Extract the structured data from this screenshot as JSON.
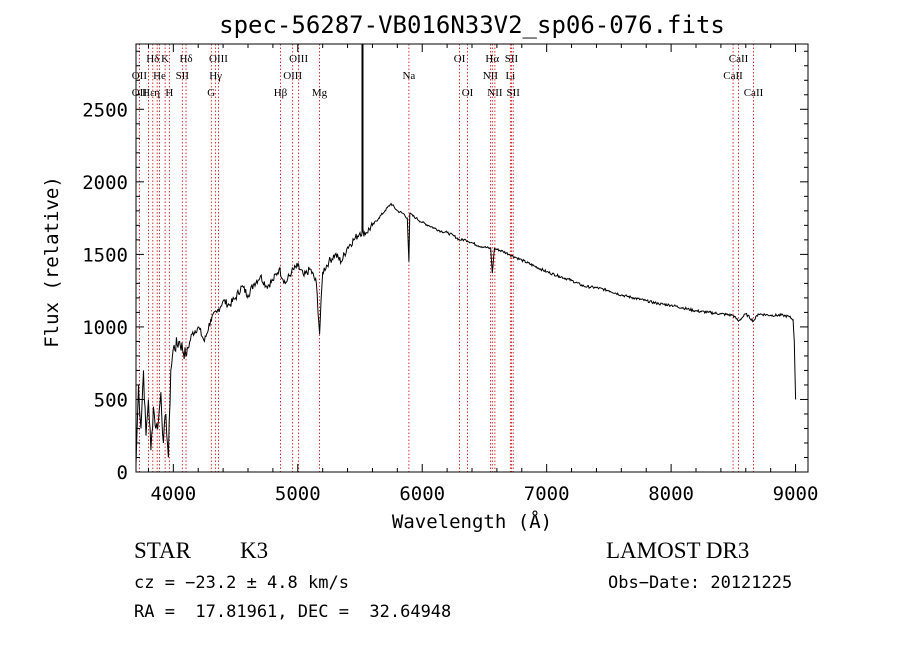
{
  "chart_data": {
    "type": "line",
    "title": "spec-56287-VB016N33V2_sp06-076.fits",
    "xlabel": "Wavelength (Å)",
    "ylabel": "Flux (relative)",
    "xlim": [
      3700,
      9100
    ],
    "ylim": [
      0,
      2950
    ],
    "xticks": [
      4000,
      5000,
      6000,
      7000,
      8000,
      9000
    ],
    "yticks": [
      0,
      500,
      1000,
      1500,
      2000,
      2500
    ],
    "marker_line_x": 5520,
    "series": [
      {
        "name": "spectrum",
        "x": [
          3700,
          3720,
          3740,
          3760,
          3780,
          3800,
          3820,
          3840,
          3860,
          3880,
          3900,
          3920,
          3940,
          3960,
          3980,
          4000,
          4050,
          4100,
          4150,
          4200,
          4250,
          4300,
          4350,
          4400,
          4450,
          4500,
          4550,
          4600,
          4650,
          4700,
          4750,
          4800,
          4850,
          4900,
          4950,
          5000,
          5050,
          5100,
          5150,
          5175,
          5200,
          5250,
          5300,
          5350,
          5400,
          5450,
          5500,
          5550,
          5600,
          5650,
          5700,
          5750,
          5800,
          5850,
          5880,
          5893,
          5900,
          5950,
          6000,
          6050,
          6100,
          6150,
          6200,
          6250,
          6300,
          6350,
          6400,
          6450,
          6500,
          6550,
          6563,
          6580,
          6650,
          6700,
          6750,
          6800,
          6900,
          7000,
          7100,
          7200,
          7300,
          7400,
          7500,
          7600,
          7700,
          7800,
          7900,
          8000,
          8100,
          8200,
          8300,
          8400,
          8498,
          8542,
          8600,
          8662,
          8700,
          8800,
          8900,
          8950,
          8980,
          8990,
          9000
        ],
        "values": [
          50,
          600,
          300,
          700,
          250,
          500,
          150,
          450,
          300,
          350,
          550,
          200,
          400,
          100,
          700,
          850,
          900,
          800,
          950,
          1000,
          900,
          1050,
          1100,
          1180,
          1150,
          1200,
          1280,
          1220,
          1300,
          1350,
          1280,
          1320,
          1400,
          1300,
          1380,
          1420,
          1350,
          1400,
          1300,
          950,
          1380,
          1450,
          1500,
          1450,
          1550,
          1600,
          1650,
          1650,
          1700,
          1750,
          1800,
          1850,
          1800,
          1780,
          1750,
          1450,
          1780,
          1750,
          1720,
          1700,
          1680,
          1660,
          1650,
          1630,
          1600,
          1600,
          1580,
          1560,
          1550,
          1540,
          1370,
          1540,
          1520,
          1500,
          1480,
          1460,
          1420,
          1380,
          1350,
          1320,
          1280,
          1270,
          1250,
          1220,
          1200,
          1180,
          1160,
          1150,
          1130,
          1110,
          1100,
          1090,
          1080,
          1040,
          1090,
          1040,
          1090,
          1080,
          1080,
          1070,
          1050,
          900,
          500
        ]
      }
    ],
    "line_annotations": [
      {
        "label": "Hδ",
        "x": 3835,
        "row": 1,
        "line_x": 3835
      },
      {
        "label": "K",
        "x": 3934,
        "row": 1,
        "line_x": 3934
      },
      {
        "label": "Hδ",
        "x": 4102,
        "row": 1,
        "line_x": 4102
      },
      {
        "label": "OIII",
        "x": 4363,
        "row": 1,
        "line_x": 4363
      },
      {
        "label": "OIII",
        "x": 5007,
        "row": 1,
        "line_x": 5007
      },
      {
        "label": "OI",
        "x": 6300,
        "row": 1,
        "line_x": 6300
      },
      {
        "label": "Hα",
        "x": 6563,
        "row": 1,
        "line_x": 6563
      },
      {
        "label": "SII",
        "x": 6717,
        "row": 1,
        "line_x": 6717
      },
      {
        "label": "CaII",
        "x": 8542,
        "row": 1,
        "line_x": 8542
      },
      {
        "label": "OII",
        "x": 3727,
        "row": 2,
        "line_x": 3727
      },
      {
        "label": "He",
        "x": 3889,
        "row": 2,
        "line_x": 3889
      },
      {
        "label": "SII",
        "x": 4072,
        "row": 2,
        "line_x": 4072
      },
      {
        "label": "Hγ",
        "x": 4340,
        "row": 2,
        "line_x": 4340
      },
      {
        "label": "OIII",
        "x": 4959,
        "row": 2,
        "line_x": 4959
      },
      {
        "label": "Na",
        "x": 5893,
        "row": 2,
        "line_x": 5893
      },
      {
        "label": "NII",
        "x": 6548,
        "row": 2,
        "line_x": 6548
      },
      {
        "label": "Li",
        "x": 6708,
        "row": 2,
        "line_x": 6708
      },
      {
        "label": "CaII",
        "x": 8498,
        "row": 2,
        "line_x": 8498
      },
      {
        "label": "OII",
        "x": 3727,
        "row": 3,
        "line_x": 3727
      },
      {
        "label": "Hε",
        "x": 3800,
        "row": 3,
        "line_x": 3800
      },
      {
        "label": "η",
        "x": 3870,
        "row": 3,
        "line_x": 3870
      },
      {
        "label": "H",
        "x": 3968,
        "row": 3,
        "line_x": 3968
      },
      {
        "label": "G",
        "x": 4305,
        "row": 3,
        "line_x": 4305
      },
      {
        "label": "Hβ",
        "x": 4861,
        "row": 3,
        "line_x": 4861
      },
      {
        "label": "Mg",
        "x": 5175,
        "row": 3,
        "line_x": 5175
      },
      {
        "label": "OI",
        "x": 6364,
        "row": 3,
        "line_x": 6364
      },
      {
        "label": "NII",
        "x": 6584,
        "row": 3,
        "line_x": 6584
      },
      {
        "label": "SII",
        "x": 6731,
        "row": 3,
        "line_x": 6731
      },
      {
        "label": "CaII",
        "x": 8662,
        "row": 3,
        "line_x": 8662
      }
    ]
  },
  "info": {
    "class": "STAR",
    "subclass": "K3",
    "survey": "LAMOST DR3",
    "cz": "cz = −23.2 ± 4.8 km/s",
    "obs_date": "Obs−Date: 20121225",
    "coords": "RA =  17.81961, DEC =  32.64948"
  },
  "colors": {
    "axis": "#000000",
    "spectrum": "#000000",
    "line_marker": "#cc0000",
    "background": "#ffffff"
  }
}
